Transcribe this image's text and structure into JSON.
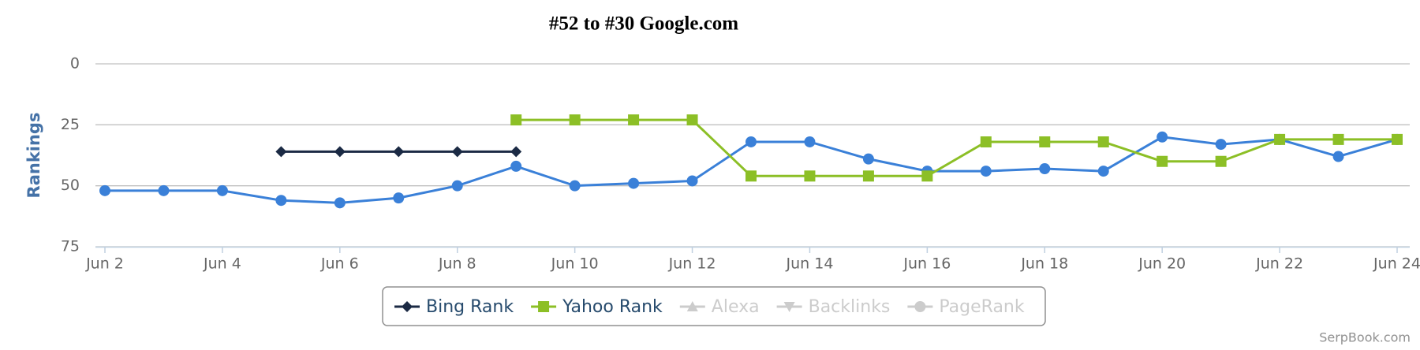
{
  "chart_data": {
    "type": "line",
    "title": "#52 to #30 Google.com",
    "y_label": "Rankings",
    "credit": "SerpBook.com",
    "categories": [
      "Jun 2",
      null,
      "Jun 4",
      null,
      "Jun 6",
      null,
      "Jun 8",
      null,
      "Jun 10",
      null,
      "Jun 12",
      null,
      "Jun 14",
      null,
      "Jun 16",
      null,
      "Jun 18",
      null,
      "Jun 20",
      null,
      "Jun 22",
      null,
      "Jun 24"
    ],
    "ylim": [
      0,
      75
    ],
    "y_reversed": true,
    "yticks": [
      0,
      25,
      50,
      75
    ],
    "grid": true,
    "series": [
      {
        "color": "#3a80d8",
        "marker": "circle",
        "in_legend": false,
        "visible": true,
        "values": [
          52,
          52,
          52,
          56,
          57,
          55,
          50,
          42,
          50,
          49,
          48,
          32,
          32,
          39,
          44,
          44,
          43,
          44,
          30,
          33,
          31,
          38,
          31
        ]
      },
      {
        "name": "Bing Rank",
        "color": "#1b2a44",
        "marker": "diamond",
        "in_legend": true,
        "visible": true,
        "values": [
          null,
          null,
          null,
          36,
          36,
          36,
          36,
          36,
          null,
          null,
          null,
          null,
          null,
          null,
          null,
          null,
          null,
          null,
          null,
          null,
          null,
          null,
          null
        ]
      },
      {
        "name": "Yahoo Rank",
        "color": "#8cbf26",
        "marker": "square",
        "in_legend": true,
        "visible": true,
        "values": [
          null,
          null,
          null,
          null,
          null,
          null,
          null,
          23,
          23,
          23,
          23,
          46,
          46,
          46,
          46,
          32,
          32,
          32,
          40,
          40,
          31,
          31,
          31
        ]
      },
      {
        "name": "Alexa",
        "color": "#cccccc",
        "marker": "triangle",
        "in_legend": true,
        "visible": false,
        "values": [
          null,
          null,
          null,
          null,
          null,
          null,
          null,
          null,
          null,
          null,
          null,
          null,
          null,
          null,
          null,
          null,
          null,
          null,
          null,
          null,
          null,
          null,
          null
        ]
      },
      {
        "name": "Backlinks",
        "color": "#cccccc",
        "marker": "triangle-down",
        "in_legend": true,
        "visible": false,
        "values": [
          null,
          null,
          null,
          null,
          null,
          null,
          null,
          null,
          null,
          null,
          null,
          null,
          null,
          null,
          null,
          null,
          null,
          null,
          null,
          null,
          null,
          null,
          null
        ]
      },
      {
        "name": "PageRank",
        "color": "#cccccc",
        "marker": "circle",
        "in_legend": true,
        "visible": false,
        "values": [
          null,
          null,
          null,
          null,
          null,
          null,
          null,
          null,
          null,
          null,
          null,
          null,
          null,
          null,
          null,
          null,
          null,
          null,
          null,
          null,
          null,
          null,
          null
        ]
      }
    ]
  }
}
